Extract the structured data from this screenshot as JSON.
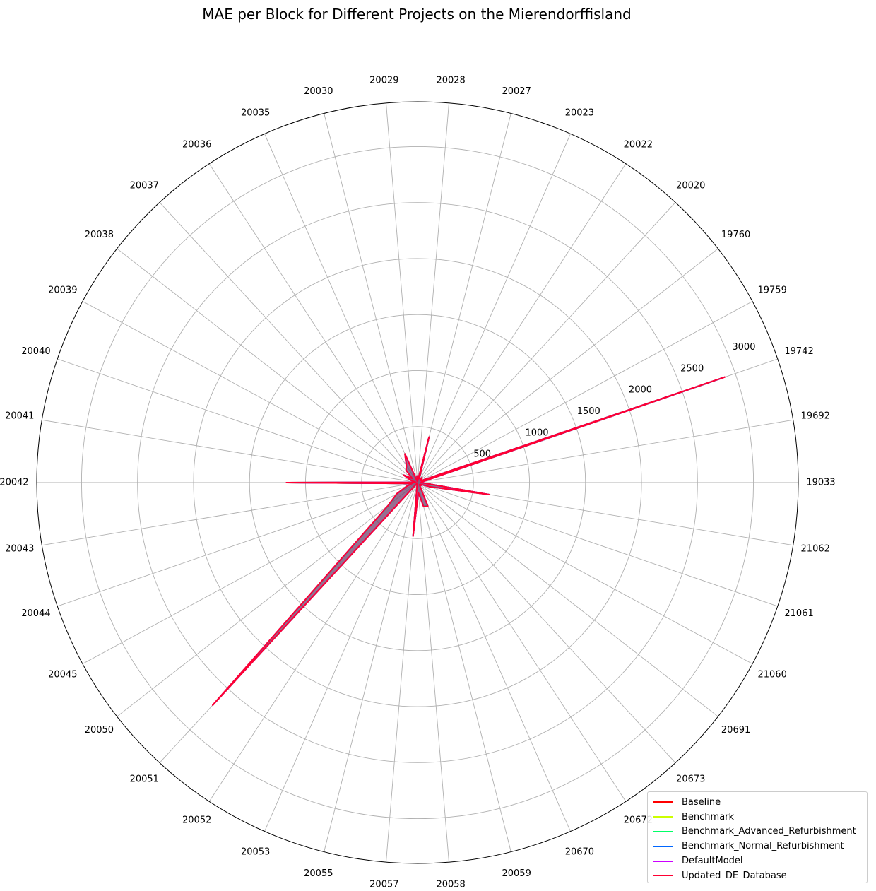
{
  "chart_data": {
    "type": "radar",
    "title": "MAE per Block for Different Projects on the Mierendorffisland",
    "categories": [
      "19033",
      "19692",
      "19742",
      "19759",
      "19760",
      "20020",
      "20022",
      "20023",
      "20027",
      "20028",
      "20029",
      "20030",
      "20035",
      "20036",
      "20037",
      "20038",
      "20039",
      "20040",
      "20041",
      "20042",
      "20043",
      "20044",
      "20045",
      "20050",
      "20051",
      "20052",
      "20053",
      "20055",
      "20057",
      "20058",
      "20059",
      "20670",
      "20672",
      "20673",
      "20691",
      "21060",
      "21061",
      "21062"
    ],
    "rticks": [
      500,
      1000,
      1500,
      2000,
      2500,
      3000
    ],
    "rlim": [
      0,
      3400
    ],
    "grid": true,
    "legend_position": "lower-right",
    "series": [
      {
        "name": "Baseline",
        "color": "#ff0000",
        "values": [
          30,
          40,
          2900,
          35,
          30,
          60,
          40,
          40,
          420,
          10,
          60,
          10,
          280,
          180,
          150,
          60,
          140,
          60,
          15,
          1170,
          50,
          100,
          210,
          330,
          2700,
          10,
          20,
          10,
          480,
          90,
          220,
          230,
          40,
          25,
          40,
          30,
          110,
          650
        ]
      },
      {
        "name": "Benchmark",
        "color": "#ccff00",
        "values": [
          30,
          40,
          2900,
          35,
          30,
          60,
          40,
          40,
          420,
          10,
          60,
          10,
          280,
          180,
          150,
          60,
          140,
          60,
          15,
          1170,
          50,
          100,
          210,
          330,
          2700,
          10,
          20,
          10,
          480,
          90,
          220,
          230,
          40,
          25,
          40,
          30,
          110,
          650
        ]
      },
      {
        "name": "Benchmark_Advanced_Refurbishment",
        "color": "#00ff66",
        "values": [
          30,
          40,
          2880,
          35,
          30,
          60,
          40,
          40,
          410,
          10,
          60,
          10,
          275,
          180,
          150,
          60,
          140,
          60,
          15,
          1150,
          50,
          100,
          205,
          320,
          2650,
          10,
          20,
          10,
          470,
          90,
          215,
          225,
          40,
          25,
          40,
          30,
          105,
          640
        ]
      },
      {
        "name": "Benchmark_Normal_Refurbishment",
        "color": "#0066ff",
        "values": [
          30,
          40,
          2885,
          35,
          30,
          60,
          40,
          40,
          415,
          10,
          60,
          10,
          278,
          180,
          150,
          60,
          140,
          60,
          15,
          1160,
          50,
          100,
          208,
          325,
          2670,
          10,
          20,
          10,
          475,
          90,
          218,
          228,
          40,
          25,
          40,
          30,
          108,
          645
        ]
      },
      {
        "name": "DefaultModel",
        "color": "#cc00ff",
        "values": [
          30,
          40,
          2900,
          35,
          30,
          60,
          40,
          40,
          420,
          10,
          60,
          10,
          280,
          180,
          150,
          60,
          140,
          60,
          15,
          1170,
          50,
          100,
          210,
          330,
          2700,
          10,
          20,
          10,
          480,
          90,
          220,
          230,
          40,
          25,
          40,
          30,
          110,
          650
        ]
      },
      {
        "name": "Updated_DE_Database",
        "color": "#ff0033",
        "values": [
          30,
          40,
          2900,
          35,
          30,
          60,
          40,
          40,
          420,
          10,
          60,
          10,
          280,
          180,
          150,
          60,
          140,
          60,
          15,
          1170,
          50,
          100,
          210,
          330,
          2700,
          10,
          20,
          10,
          480,
          90,
          220,
          230,
          40,
          25,
          40,
          30,
          110,
          650
        ]
      }
    ]
  }
}
